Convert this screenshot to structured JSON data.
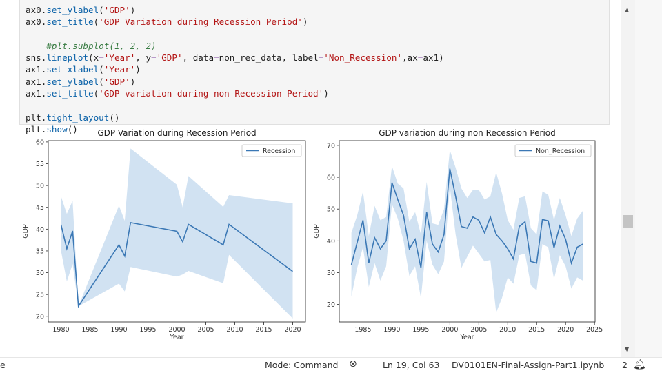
{
  "code_lines": [
    [
      [
        "t",
        "ax0."
      ],
      [
        "k",
        "set_ylabel"
      ],
      [
        "t",
        "("
      ],
      [
        "s",
        "'GDP'"
      ],
      [
        "t",
        ")"
      ]
    ],
    [
      [
        "t",
        "ax0."
      ],
      [
        "k",
        "set_title"
      ],
      [
        "t",
        "("
      ],
      [
        "s",
        "'GDP Variation during Recession Period'"
      ],
      [
        "t",
        ")"
      ]
    ],
    [
      [
        "t",
        ""
      ]
    ],
    [
      [
        "t",
        "    "
      ],
      [
        "c",
        "#plt.subplot(1, 2, 2)"
      ]
    ],
    [
      [
        "t",
        "sns."
      ],
      [
        "k",
        "lineplot"
      ],
      [
        "t",
        "(x"
      ],
      [
        "o",
        "="
      ],
      [
        "s",
        "'Year'"
      ],
      [
        "t",
        ", y"
      ],
      [
        "o",
        "="
      ],
      [
        "s",
        "'GDP'"
      ],
      [
        "t",
        ", data"
      ],
      [
        "o",
        "="
      ],
      [
        "t",
        "non_rec_data, label"
      ],
      [
        "o",
        "="
      ],
      [
        "s",
        "'Non_Recession'"
      ],
      [
        "t",
        ",ax"
      ],
      [
        "o",
        "="
      ],
      [
        "t",
        "ax1)"
      ]
    ],
    [
      [
        "t",
        "ax1."
      ],
      [
        "k",
        "set_xlabel"
      ],
      [
        "t",
        "("
      ],
      [
        "s",
        "'Year'"
      ],
      [
        "t",
        ")"
      ]
    ],
    [
      [
        "t",
        "ax1."
      ],
      [
        "k",
        "set_ylabel"
      ],
      [
        "t",
        "("
      ],
      [
        "s",
        "'GDP'"
      ],
      [
        "t",
        ")"
      ]
    ],
    [
      [
        "t",
        "ax1."
      ],
      [
        "k",
        "set_title"
      ],
      [
        "t",
        "("
      ],
      [
        "s",
        "'GDP variation during non Recession Period'"
      ],
      [
        "t",
        ")"
      ]
    ],
    [
      [
        "t",
        ""
      ]
    ],
    [
      [
        "t",
        "plt."
      ],
      [
        "k",
        "tight_layout"
      ],
      [
        "t",
        "()"
      ]
    ],
    [
      [
        "t",
        "plt."
      ],
      [
        "k",
        "show"
      ],
      [
        "t",
        "()"
      ]
    ]
  ],
  "status": {
    "mode": "Mode: Command",
    "position": "Ln 19, Col 63",
    "filename": "DV0101EN-Final-Assign-Part1.ipynb",
    "count": "2",
    "left_fragment": "e"
  },
  "colors": {
    "line": "#3b78b5",
    "band": "#cfe0f1"
  },
  "chart_data": [
    {
      "type": "line",
      "title": "GDP Variation during Recession Period",
      "xlabel": "Year",
      "ylabel": "GDP",
      "xlim": [
        1977.8,
        2022.2
      ],
      "ylim": [
        18.7,
        60.3
      ],
      "xticks": [
        1980,
        1985,
        1990,
        1995,
        2000,
        2005,
        2010,
        2015,
        2020
      ],
      "yticks": [
        20,
        25,
        30,
        35,
        40,
        45,
        50,
        55,
        60
      ],
      "legend": "top-right",
      "series": [
        {
          "name": "Recession",
          "x": [
            1980,
            1981,
            1982,
            1983,
            1990,
            1991,
            1992,
            2000,
            2001,
            2002,
            2008,
            2009,
            2020
          ],
          "y": [
            41.0,
            35.5,
            39.6,
            22.3,
            36.4,
            33.8,
            41.5,
            39.5,
            37.1,
            41.1,
            36.4,
            41.1,
            30.3
          ],
          "lower": [
            35.0,
            28.0,
            32.0,
            22.3,
            27.5,
            25.7,
            31.3,
            29.1,
            29.6,
            30.4,
            27.6,
            34.1,
            19.5
          ],
          "upper": [
            47.5,
            43.5,
            46.5,
            22.3,
            45.4,
            41.9,
            58.5,
            50.2,
            45.0,
            52.2,
            45.1,
            47.8,
            45.9
          ]
        }
      ]
    },
    {
      "type": "line",
      "title": "GDP variation during non Recession Period",
      "xlabel": "Year",
      "ylabel": "GDP",
      "xlim": [
        1980.9,
        2025.1
      ],
      "ylim": [
        14.5,
        71.5
      ],
      "xticks": [
        1985,
        1990,
        1995,
        2000,
        2005,
        2010,
        2015,
        2020,
        2025
      ],
      "yticks": [
        20,
        30,
        40,
        50,
        60,
        70
      ],
      "legend": "top-right",
      "series": [
        {
          "name": "Non_Recession",
          "x": [
            1983,
            1984,
            1985,
            1986,
            1987,
            1988,
            1989,
            1990,
            1991,
            1992,
            1993,
            1994,
            1995,
            1996,
            1997,
            1998,
            1999,
            2000,
            2001,
            2002,
            2003,
            2004,
            2005,
            2006,
            2007,
            2008,
            2009,
            2010,
            2011,
            2012,
            2013,
            2014,
            2015,
            2016,
            2017,
            2018,
            2019,
            2020,
            2021,
            2022,
            2023
          ],
          "y": [
            32.5,
            39.5,
            46.5,
            33.0,
            41.0,
            37.5,
            40.0,
            58.3,
            53.0,
            48.0,
            37.5,
            40.5,
            31.5,
            49.0,
            39.0,
            36.5,
            42.0,
            62.7,
            54.0,
            44.5,
            44.0,
            47.5,
            46.5,
            42.5,
            47.5,
            42.0,
            40.0,
            37.5,
            34.3,
            44.5,
            46.0,
            33.5,
            33.0,
            46.7,
            46.3,
            37.8,
            44.7,
            40.5,
            33.0,
            38.0,
            39.0
          ],
          "lower": [
            22.5,
            31.5,
            38.0,
            25.5,
            33.0,
            27.5,
            32.0,
            51.5,
            47.0,
            40.0,
            29.0,
            32.0,
            22.0,
            40.0,
            32.5,
            29.5,
            33.5,
            57.0,
            42.0,
            31.5,
            35.0,
            38.5,
            36.0,
            33.5,
            34.0,
            17.5,
            22.0,
            28.5,
            26.5,
            35.5,
            36.0,
            26.0,
            24.5,
            39.0,
            38.0,
            28.0,
            35.5,
            32.0,
            25.0,
            28.5,
            27.5
          ],
          "upper": [
            42.5,
            48.0,
            55.5,
            41.5,
            51.0,
            46.5,
            47.5,
            63.5,
            58.0,
            56.5,
            46.0,
            49.0,
            42.0,
            58.5,
            45.5,
            45.0,
            50.0,
            68.5,
            63.0,
            56.5,
            53.5,
            56.0,
            56.0,
            53.0,
            54.0,
            61.5,
            55.0,
            46.5,
            43.5,
            53.5,
            54.0,
            44.0,
            42.0,
            55.5,
            54.5,
            46.5,
            53.5,
            48.0,
            41.5,
            47.0,
            49.5
          ]
        }
      ]
    }
  ]
}
